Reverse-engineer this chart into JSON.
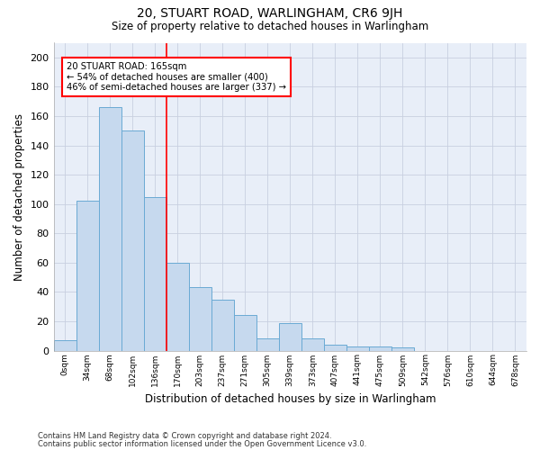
{
  "title": "20, STUART ROAD, WARLINGHAM, CR6 9JH",
  "subtitle": "Size of property relative to detached houses in Warlingham",
  "xlabel": "Distribution of detached houses by size in Warlingham",
  "ylabel": "Number of detached properties",
  "footnote1": "Contains HM Land Registry data © Crown copyright and database right 2024.",
  "footnote2": "Contains public sector information licensed under the Open Government Licence v3.0.",
  "bar_labels": [
    "0sqm",
    "34sqm",
    "68sqm",
    "102sqm",
    "136sqm",
    "170sqm",
    "203sqm",
    "237sqm",
    "271sqm",
    "305sqm",
    "339sqm",
    "373sqm",
    "407sqm",
    "441sqm",
    "475sqm",
    "509sqm",
    "542sqm",
    "576sqm",
    "610sqm",
    "644sqm",
    "678sqm"
  ],
  "bar_values": [
    7,
    102,
    166,
    150,
    105,
    60,
    43,
    35,
    24,
    8,
    19,
    8,
    4,
    3,
    3,
    2,
    0,
    0,
    0,
    0,
    0
  ],
  "bar_color": "#c6d9ee",
  "bar_edge_color": "#6aaad4",
  "grid_color": "#c8cfe0",
  "background_color": "#e8eef8",
  "annotation_text1": "20 STUART ROAD: 165sqm",
  "annotation_text2": "← 54% of detached houses are smaller (400)",
  "annotation_text3": "46% of semi-detached houses are larger (337) →",
  "red_line_x": 4.5,
  "ylim": [
    0,
    210
  ],
  "yticks": [
    0,
    20,
    40,
    60,
    80,
    100,
    120,
    140,
    160,
    180,
    200
  ]
}
